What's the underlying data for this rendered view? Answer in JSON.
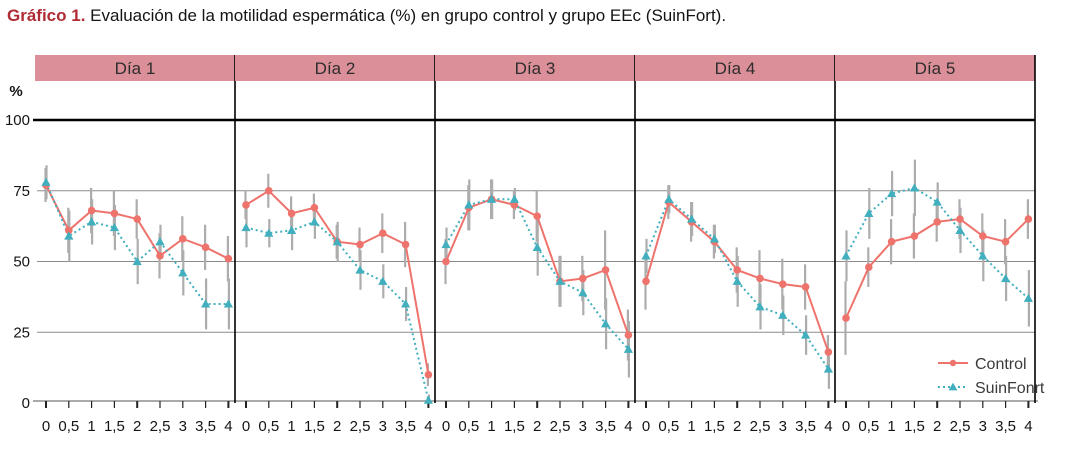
{
  "title": {
    "prefix": "Gráfico 1.",
    "rest": "Evaluación de la motilidad espermática (%) en grupo control y grupo EEc (SuinFort)."
  },
  "colors": {
    "title_accent": "#B02B34",
    "text": "#141414",
    "header_bg": "#DB8F99",
    "header_text": "#2D2D2D",
    "control": "#EE736D",
    "suinfonrt": "#41AFBE",
    "error_bar": "#ADADAD",
    "gridline": "#8C8C8C",
    "top_line": "#000000",
    "panel_border": "#000000",
    "axis_line": "#AAAAAA",
    "tick": "#222222",
    "legend_text": "#3A3A3A"
  },
  "chart_data": {
    "type": "line",
    "title": "Gráfico 1. Evaluación de la motilidad espermática (%) en grupo control y grupo EEc (SuinFort).",
    "ylabel": "%",
    "ylim": [
      0,
      100
    ],
    "y_ticks": [
      0,
      25,
      50,
      75,
      100
    ],
    "grid": true,
    "legend_position": "bottom-right",
    "x": [
      0,
      0.5,
      1,
      1.5,
      2,
      2.5,
      3,
      3.5,
      4
    ],
    "x_tick_labels": [
      "0",
      "0,5",
      "1",
      "1,5",
      "2",
      "2,5",
      "3",
      "3,5",
      "4"
    ],
    "legend": {
      "items": [
        {
          "label": "Control"
        },
        {
          "label": "SuinFonrt"
        }
      ]
    },
    "panels": [
      {
        "label": "Día 1",
        "series": [
          {
            "name": "Control",
            "values": [
              77,
              61,
              68,
              67,
              65,
              52,
              58,
              55,
              51
            ],
            "err": [
              6,
              8,
              8,
              8,
              7,
              8,
              8,
              8,
              8
            ]
          },
          {
            "name": "SuinFonrt",
            "values": [
              78,
              59,
              64,
              62,
              50,
              57,
              46,
              35,
              35
            ],
            "err": [
              6,
              9,
              8,
              8,
              8,
              6,
              8,
              9,
              9
            ]
          }
        ]
      },
      {
        "label": "Día 2",
        "series": [
          {
            "name": "Control",
            "values": [
              70,
              75,
              67,
              69,
              57,
              56,
              60,
              56,
              10
            ],
            "err": [
              5,
              6,
              6,
              5,
              6,
              6,
              7,
              8,
              4
            ]
          },
          {
            "name": "SuinFonrt",
            "values": [
              62,
              60,
              61,
              64,
              57,
              47,
              43,
              35,
              1
            ],
            "err": [
              7,
              5,
              7,
              6,
              7,
              7,
              6,
              6,
              2
            ]
          }
        ]
      },
      {
        "label": "Día 3",
        "series": [
          {
            "name": "Control",
            "values": [
              50,
              69,
              72,
              70,
              66,
              43,
              44,
              47,
              24
            ],
            "err": [
              8,
              8,
              7,
              5,
              9,
              9,
              8,
              14,
              9
            ]
          },
          {
            "name": "SuinFonrt",
            "values": [
              56,
              70,
              72,
              72,
              55,
              43,
              39,
              28,
              19
            ],
            "err": [
              6,
              9,
              7,
              4,
              10,
              9,
              8,
              9,
              10
            ]
          }
        ]
      },
      {
        "label": "Día 4",
        "series": [
          {
            "name": "Control",
            "values": [
              43,
              71,
              64,
              57,
              47,
              44,
              42,
              41,
              18
            ],
            "err": [
              10,
              6,
              7,
              6,
              8,
              10,
              9,
              8,
              6
            ]
          },
          {
            "name": "SuinFonrt",
            "values": [
              52,
              72,
              65,
              58,
              43,
              34,
              31,
              24,
              12
            ],
            "err": [
              6,
              5,
              6,
              5,
              9,
              8,
              7,
              7,
              7
            ]
          }
        ]
      },
      {
        "label": "Día 5",
        "series": [
          {
            "name": "Control",
            "values": [
              30,
              48,
              57,
              59,
              64,
              65,
              59,
              57,
              65
            ],
            "err": [
              13,
              7,
              8,
              8,
              7,
              7,
              8,
              8,
              7
            ]
          },
          {
            "name": "SuinFonrt",
            "values": [
              52,
              67,
              74,
              76,
              71,
              61,
              52,
              44,
              37
            ],
            "err": [
              9,
              9,
              8,
              10,
              7,
              8,
              9,
              8,
              10
            ]
          }
        ]
      }
    ]
  }
}
